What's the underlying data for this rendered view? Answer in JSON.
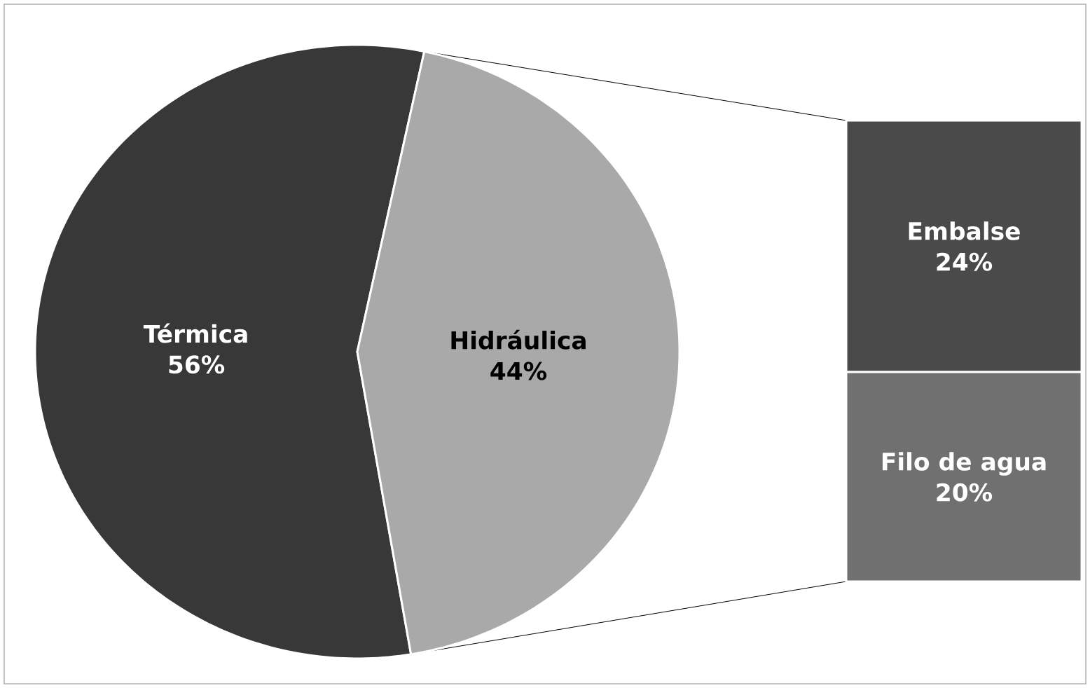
{
  "chart_data": [
    {
      "type": "pie",
      "categories": [
        "Térmica",
        "Hidráulica"
      ],
      "values": [
        56,
        44
      ],
      "colors": [
        "#383838",
        "#a9a9a9"
      ],
      "value_labels": [
        "56%",
        "44%"
      ]
    },
    {
      "type": "bar",
      "stacked": true,
      "categories": [
        null
      ],
      "series": [
        {
          "name": "Filo de agua",
          "color": "#707070",
          "values": [
            20
          ],
          "value_labels": [
            "20%"
          ]
        },
        {
          "name": "Embalse",
          "color": "#4a4a4a",
          "values": [
            24
          ],
          "value_labels": [
            "24%"
          ]
        }
      ]
    }
  ]
}
